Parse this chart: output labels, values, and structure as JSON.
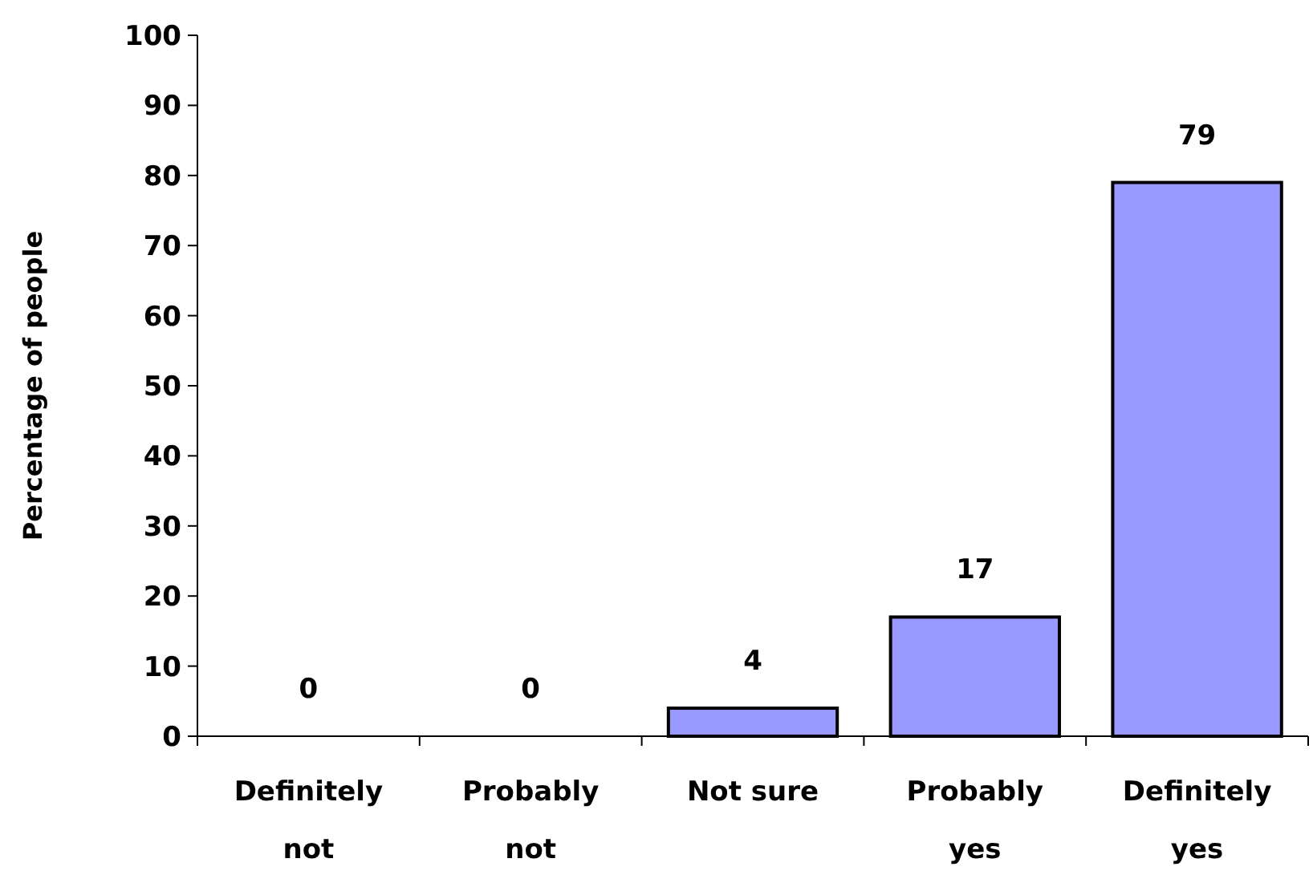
{
  "chart_data": {
    "type": "bar",
    "ylabel": "Percentage of people",
    "categories": [
      "Definitely not",
      "Probably not",
      "Not sure",
      "Probably yes",
      "Definitely yes"
    ],
    "values": [
      0,
      0,
      4,
      17,
      79
    ],
    "color": "#9999ff",
    "ylim": [
      0,
      100
    ],
    "yticks": [
      0,
      10,
      20,
      30,
      40,
      50,
      60,
      70,
      80,
      90,
      100
    ],
    "data_labels": true
  }
}
